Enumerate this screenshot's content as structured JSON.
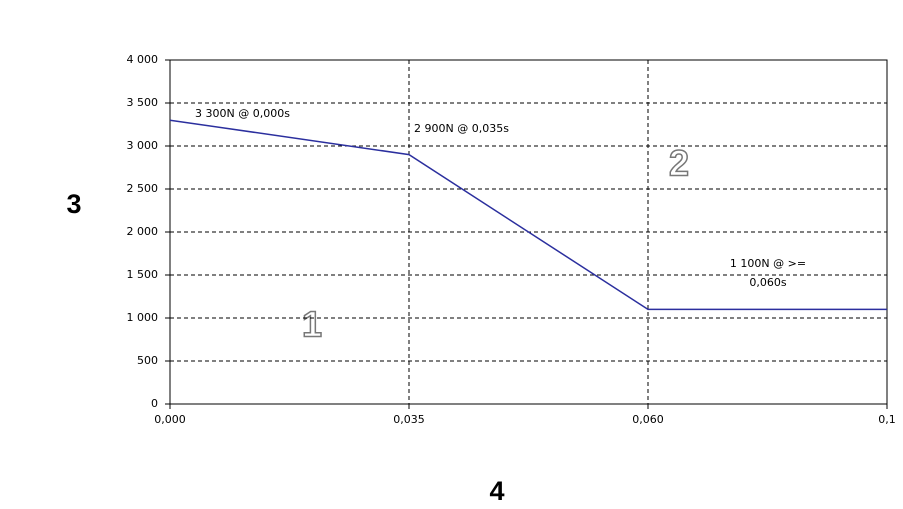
{
  "chart_data": {
    "type": "line",
    "categories": [
      "0,000",
      "0,035",
      "0,060",
      "0,1"
    ],
    "values": [
      3300,
      2900,
      1100,
      1100
    ],
    "color": "#2b2f9e",
    "ylim": [
      0,
      4000
    ],
    "yticks": [
      0,
      500,
      {
        "value": 1000,
        "label": "1 000"
      },
      {
        "value": 1500,
        "label": "1 500"
      },
      {
        "value": 2000,
        "label": "2 000"
      },
      {
        "value": 2500,
        "label": "2 500"
      },
      {
        "value": 3000,
        "label": "3 000"
      },
      {
        "value": 3500,
        "label": "3 500"
      },
      {
        "value": 4000,
        "label": "4 000"
      }
    ],
    "grid": true,
    "y_label": "3",
    "x_label": "4",
    "annotations": [
      "3 300N @  0,000s",
      "2 900N @ 0,035s",
      "1 100N @ >=",
      "0,060s"
    ],
    "region_labels": [
      "1",
      "2"
    ]
  }
}
